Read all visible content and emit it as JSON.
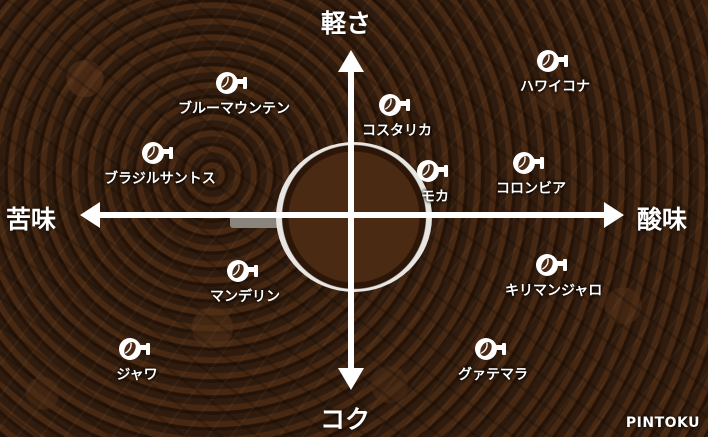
{
  "axes": {
    "top": "軽さ",
    "bottom": "コク",
    "left": "苦味",
    "right": "酸味"
  },
  "coffees": [
    {
      "name": "ハワイコナ"
    },
    {
      "name": "ブルーマウンテン"
    },
    {
      "name": "コスタリカ"
    },
    {
      "name": "ブラジルサントス"
    },
    {
      "name": "モカ"
    },
    {
      "name": "コロンビア"
    },
    {
      "name": "マンデリン"
    },
    {
      "name": "キリマンジャロ"
    },
    {
      "name": "ジャワ"
    },
    {
      "name": "グァテマラ"
    }
  ],
  "brand": "PINTOKU",
  "icon": "coffee-bean-cup-icon",
  "colors": {
    "label": "#ffffff",
    "axis": "#ffffff"
  }
}
